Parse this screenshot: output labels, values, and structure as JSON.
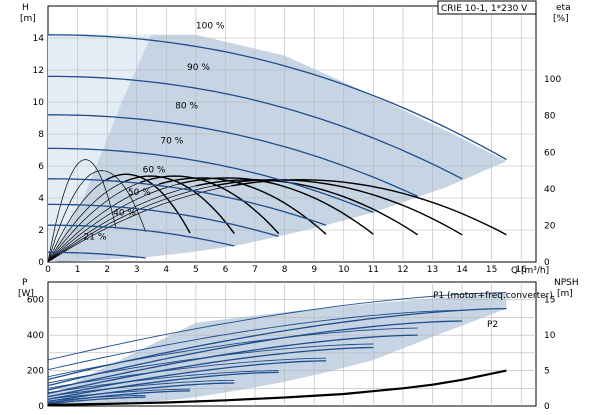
{
  "chart_data": [
    {
      "id": "top",
      "type": "line",
      "title": "CRIE 10-1, 1*230 V",
      "xlabel": "Q [m³/h]",
      "ylabel_top": "H",
      "ylabel_unit": "[m]",
      "y2label_top": "eta",
      "y2label_unit": "[%]",
      "xlim": [
        0,
        16.5
      ],
      "ylim": [
        0,
        16
      ],
      "y2lim": [
        0,
        140
      ],
      "x_ticks": [
        "0",
        "1",
        "2",
        "3",
        "4",
        "5",
        "6",
        "7",
        "8",
        "9",
        "10",
        "11",
        "12",
        "13",
        "14",
        "15",
        "16"
      ],
      "y_ticks": [
        "0",
        "2",
        "4",
        "6",
        "8",
        "10",
        "12",
        "14"
      ],
      "y2_ticks": [
        "0",
        "20",
        "40",
        "60",
        "80",
        "100"
      ],
      "grid": true,
      "head_curves": [
        {
          "name": "100 %",
          "shutoff_h": 14.2,
          "end_q": 15.5,
          "end_h": 6.4,
          "exp": 2.1,
          "label_q": 5.0,
          "label_h": 14.6
        },
        {
          "name": "90 %",
          "shutoff_h": 11.6,
          "end_q": 14.0,
          "end_h": 5.2,
          "exp": 2.1,
          "label_q": 4.7,
          "label_h": 12.0
        },
        {
          "name": "80 %",
          "shutoff_h": 9.2,
          "end_q": 12.5,
          "end_h": 4.1,
          "exp": 2.1,
          "label_q": 4.3,
          "label_h": 9.6
        },
        {
          "name": "70 %",
          "shutoff_h": 7.1,
          "end_q": 11.0,
          "end_h": 3.1,
          "exp": 2.1,
          "label_q": 3.8,
          "label_h": 7.4
        },
        {
          "name": "60 %",
          "shutoff_h": 5.2,
          "end_q": 9.4,
          "end_h": 2.3,
          "exp": 2.1,
          "label_q": 3.2,
          "label_h": 5.6
        },
        {
          "name": "50 %",
          "shutoff_h": 3.6,
          "end_q": 7.8,
          "end_h": 1.6,
          "exp": 2.1,
          "label_q": 2.7,
          "label_h": 4.2
        },
        {
          "name": "40 %",
          "shutoff_h": 2.3,
          "end_q": 6.3,
          "end_h": 1.0,
          "exp": 2.1,
          "label_q": 2.2,
          "label_h": 2.9
        },
        {
          "name": "21 %",
          "shutoff_h": 0.6,
          "end_q": 3.3,
          "end_h": 0.25,
          "exp": 2.1,
          "label_q": 1.2,
          "label_h": 1.4
        }
      ],
      "efficiency_curves_q_end": [
        2.3,
        3.3,
        4.8,
        6.3,
        7.8,
        9.4,
        11.0,
        12.5,
        14.0,
        15.5
      ],
      "efficiency_curves_peak_eta": [
        56,
        50,
        48,
        47,
        47,
        46,
        46,
        45,
        45,
        45
      ],
      "region_polygon": [
        [
          0,
          14.2
        ],
        [
          5.0,
          14.2
        ],
        [
          8,
          12.9
        ],
        [
          11,
          10.4
        ],
        [
          13.8,
          7.9
        ],
        [
          15.5,
          6.3
        ],
        [
          13.5,
          4.7
        ],
        [
          11,
          3.1
        ],
        [
          9.4,
          2.3
        ],
        [
          7.8,
          1.6
        ],
        [
          6.3,
          1.0
        ],
        [
          4.8,
          0.6
        ],
        [
          3.3,
          0.3
        ],
        [
          1.5,
          0.1
        ],
        [
          0,
          0
        ]
      ]
    },
    {
      "id": "bottom",
      "type": "line",
      "ylabel_top": "P",
      "ylabel_unit": "[W]",
      "y2label_top": "NPSH",
      "y2label_unit": "[m]",
      "xlim": [
        0,
        16.5
      ],
      "ylim": [
        0,
        700
      ],
      "y2lim": [
        0,
        17.5
      ],
      "y_ticks": [
        "0",
        "200",
        "400",
        "600"
      ],
      "y2_ticks": [
        "0",
        "5",
        "10",
        "15"
      ],
      "grid": true,
      "legend_p1": "P1 (motor+freq.converter)",
      "legend_p2": "P2",
      "p1_curves": [
        {
          "start": 260,
          "end": 640,
          "q_end": 15.5
        },
        {
          "start": 205,
          "end": 540,
          "q_end": 14.0
        },
        {
          "start": 165,
          "end": 440,
          "q_end": 12.5
        },
        {
          "start": 130,
          "end": 350,
          "q_end": 11.0
        },
        {
          "start": 100,
          "end": 270,
          "q_end": 9.4
        },
        {
          "start": 75,
          "end": 200,
          "q_end": 7.8
        },
        {
          "start": 55,
          "end": 145,
          "q_end": 6.3
        },
        {
          "start": 40,
          "end": 95,
          "q_end": 4.8
        },
        {
          "start": 28,
          "end": 60,
          "q_end": 3.3
        }
      ],
      "p2_curves": [
        {
          "start": 150,
          "end": 550,
          "q_end": 15.5
        },
        {
          "start": 115,
          "end": 480,
          "q_end": 14.0
        },
        {
          "start": 90,
          "end": 400,
          "q_end": 12.5
        },
        {
          "start": 70,
          "end": 330,
          "q_end": 11.0
        },
        {
          "start": 52,
          "end": 255,
          "q_end": 9.4
        },
        {
          "start": 38,
          "end": 190,
          "q_end": 7.8
        },
        {
          "start": 26,
          "end": 130,
          "q_end": 6.3
        },
        {
          "start": 18,
          "end": 85,
          "q_end": 4.8
        },
        {
          "start": 12,
          "end": 50,
          "q_end": 3.3
        }
      ],
      "npsh_curve": {
        "q": [
          0,
          2,
          4,
          6,
          8,
          10,
          12,
          13,
          14,
          15.5
        ],
        "npsh": [
          0.15,
          0.3,
          0.5,
          0.8,
          1.2,
          1.7,
          2.5,
          3.0,
          3.7,
          5.0
        ]
      },
      "region_polygon": [
        [
          0,
          60
        ],
        [
          5,
          470
        ],
        [
          8,
          530
        ],
        [
          11,
          580
        ],
        [
          15.5,
          640
        ],
        [
          15.5,
          550
        ],
        [
          13,
          390
        ],
        [
          11,
          260
        ],
        [
          9.4,
          190
        ],
        [
          7.8,
          130
        ],
        [
          6.3,
          85
        ],
        [
          4.8,
          45
        ],
        [
          3.3,
          20
        ],
        [
          0,
          5
        ]
      ]
    }
  ]
}
